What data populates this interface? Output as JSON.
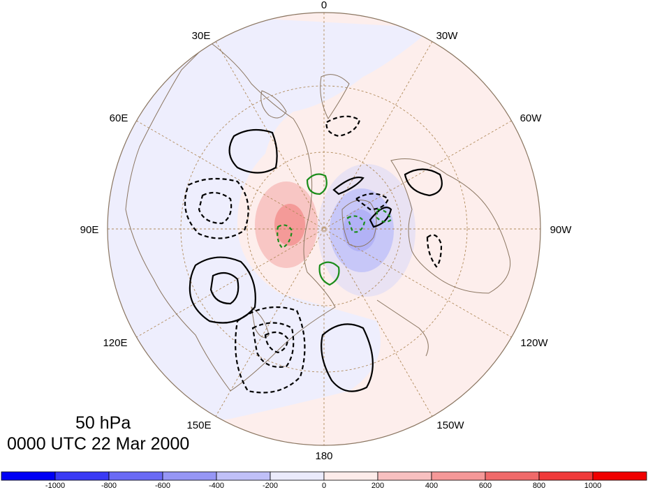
{
  "map": {
    "projection": "north-polar-stereographic",
    "longitude_labels": [
      "0",
      "30W",
      "60W",
      "90W",
      "120W",
      "150W",
      "180",
      "150E",
      "120E",
      "90E",
      "60E",
      "30E"
    ],
    "colors": {
      "land_outline": "#8a7560",
      "grid": "#b08a5a",
      "contour_positive": "#000000",
      "contour_negative": "#000000",
      "contour_zero": "#1a8c1a"
    }
  },
  "title": {
    "level": "50 hPa",
    "time": "0000 UTC 22 Mar 2000"
  },
  "colorbar": {
    "labels": [
      "-1000",
      "-800",
      "-600",
      "-400",
      "-200",
      "0",
      "200",
      "400",
      "600",
      "800",
      "1000"
    ],
    "colors": [
      "#0000f5",
      "#3a3af5",
      "#6a6af5",
      "#9696f5",
      "#c0c0f8",
      "#ebebfc",
      "#fdecea",
      "#f8c0c0",
      "#f59898",
      "#f06a6a",
      "#f03a3a",
      "#f00000"
    ]
  }
}
